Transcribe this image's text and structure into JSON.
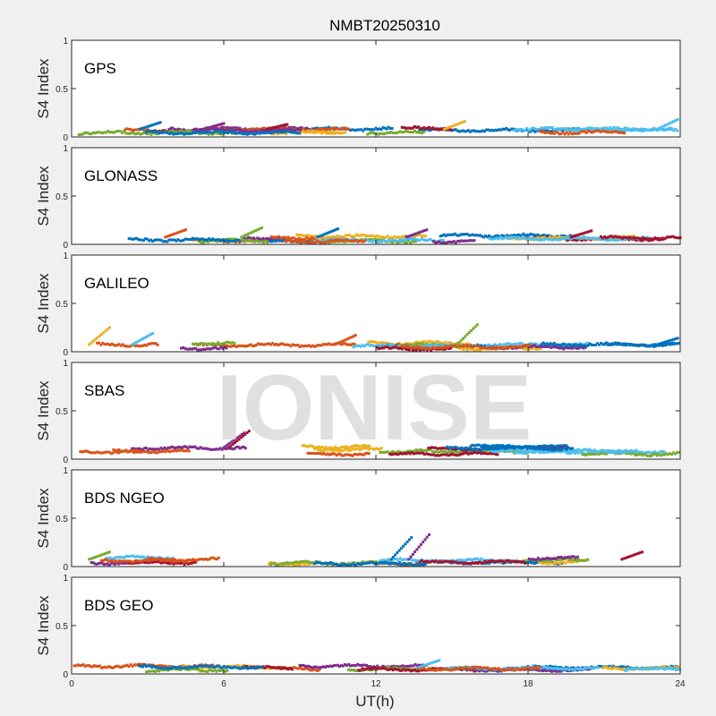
{
  "chart_data": {
    "type": "scatter",
    "title": "NMBT20250310",
    "xlabel": "UT(h)",
    "watermark": "IONISE",
    "x_ticks": [
      "0",
      "6",
      "12",
      "18",
      "24"
    ],
    "y_ticks": [
      "0",
      "0.5",
      "1"
    ],
    "xlim": [
      0,
      24
    ],
    "ylim": [
      0,
      1
    ],
    "panel_background": "#ffffff",
    "figure_background": "#f0f0f0",
    "series_colors": [
      "#0072BD",
      "#D95319",
      "#EDB120",
      "#7E2F8E",
      "#77AC30",
      "#4DBEEE",
      "#A2142F"
    ],
    "panels": [
      {
        "name": "GPS",
        "ylabel": "S4 Index",
        "typical_s4": [
          0.04,
          0.12
        ],
        "peaks": [
          {
            "x": 3.5,
            "y": 0.15
          },
          {
            "x": 6.0,
            "y": 0.14
          },
          {
            "x": 8.5,
            "y": 0.13
          },
          {
            "x": 15.5,
            "y": 0.16
          },
          {
            "x": 23.9,
            "y": 0.18
          }
        ]
      },
      {
        "name": "GLONASS",
        "ylabel": "S4 Index",
        "typical_s4": [
          0.03,
          0.12
        ],
        "peaks": [
          {
            "x": 4.5,
            "y": 0.15
          },
          {
            "x": 7.5,
            "y": 0.17
          },
          {
            "x": 10.5,
            "y": 0.16
          },
          {
            "x": 14.0,
            "y": 0.15
          },
          {
            "x": 20.5,
            "y": 0.14
          }
        ]
      },
      {
        "name": "GALILEO",
        "ylabel": "S4 Index",
        "typical_s4": [
          0.03,
          0.12
        ],
        "peaks": [
          {
            "x": 1.5,
            "y": 0.25
          },
          {
            "x": 3.2,
            "y": 0.19
          },
          {
            "x": 11.2,
            "y": 0.17
          },
          {
            "x": 16.0,
            "y": 0.28
          },
          {
            "x": 23.9,
            "y": 0.14
          }
        ]
      },
      {
        "name": "SBAS",
        "ylabel": "S4 Index",
        "typical_s4": [
          0.05,
          0.19
        ],
        "peaks": [
          {
            "x": 6.8,
            "y": 0.27
          },
          {
            "x": 7.0,
            "y": 0.29
          }
        ]
      },
      {
        "name": "BDS NGEO",
        "ylabel": "S4 Index",
        "typical_s4": [
          0.03,
          0.12
        ],
        "peaks": [
          {
            "x": 1.5,
            "y": 0.15
          },
          {
            "x": 13.4,
            "y": 0.3
          },
          {
            "x": 14.1,
            "y": 0.33
          },
          {
            "x": 22.5,
            "y": 0.15
          }
        ]
      },
      {
        "name": "BDS GEO",
        "ylabel": "S4 Index",
        "typical_s4": [
          0.04,
          0.1
        ],
        "peaks": [
          {
            "x": 14.5,
            "y": 0.14
          }
        ]
      }
    ]
  }
}
